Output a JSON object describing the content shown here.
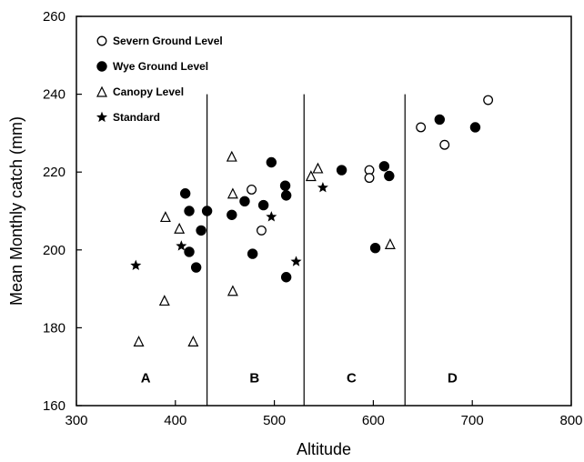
{
  "chart_data": {
    "type": "scatter",
    "xlabel": "Altitude",
    "ylabel": "Mean Monthly catch (mm)",
    "xlim": [
      300,
      800
    ],
    "ylim": [
      160,
      260
    ],
    "x_ticks": [
      300,
      400,
      500,
      600,
      700,
      800
    ],
    "y_ticks": [
      160,
      180,
      200,
      220,
      240,
      260
    ],
    "legend": {
      "placement": "top-left",
      "entries": [
        {
          "name": "Severn Ground Level",
          "marker": "open-circle"
        },
        {
          "name": "Wye Ground Level",
          "marker": "filled-circle"
        },
        {
          "name": "Canopy Level",
          "marker": "open-triangle"
        },
        {
          "name": "Standard",
          "marker": "star"
        }
      ]
    },
    "region_boundaries": [
      432,
      530,
      632
    ],
    "regions": [
      {
        "label": "A",
        "x": 370,
        "y": 166
      },
      {
        "label": "B",
        "x": 480,
        "y": 166
      },
      {
        "label": "C",
        "x": 578,
        "y": 166
      },
      {
        "label": "D",
        "x": 680,
        "y": 166
      }
    ],
    "series": [
      {
        "name": "Severn Ground Level",
        "marker": "open-circle",
        "points": [
          {
            "x": 477,
            "y": 215.5
          },
          {
            "x": 487,
            "y": 205
          },
          {
            "x": 596,
            "y": 220.5
          },
          {
            "x": 596,
            "y": 218.5
          },
          {
            "x": 648,
            "y": 231.5
          },
          {
            "x": 672,
            "y": 227
          },
          {
            "x": 716,
            "y": 238.5
          }
        ]
      },
      {
        "name": "Wye Ground Level",
        "marker": "filled-circle",
        "points": [
          {
            "x": 410,
            "y": 214.5
          },
          {
            "x": 414,
            "y": 210
          },
          {
            "x": 414,
            "y": 199.5
          },
          {
            "x": 421,
            "y": 195.5
          },
          {
            "x": 426,
            "y": 205
          },
          {
            "x": 432,
            "y": 210
          },
          {
            "x": 457,
            "y": 209
          },
          {
            "x": 470,
            "y": 212.5
          },
          {
            "x": 478,
            "y": 199
          },
          {
            "x": 489,
            "y": 211.5
          },
          {
            "x": 497,
            "y": 222.5
          },
          {
            "x": 511,
            "y": 216.5
          },
          {
            "x": 512,
            "y": 214
          },
          {
            "x": 512,
            "y": 193
          },
          {
            "x": 568,
            "y": 220.5
          },
          {
            "x": 602,
            "y": 200.5
          },
          {
            "x": 611,
            "y": 221.5
          },
          {
            "x": 616,
            "y": 219
          },
          {
            "x": 667,
            "y": 233.5
          },
          {
            "x": 703,
            "y": 231.5
          }
        ]
      },
      {
        "name": "Canopy Level",
        "marker": "open-triangle",
        "points": [
          {
            "x": 363,
            "y": 176.5
          },
          {
            "x": 389,
            "y": 187
          },
          {
            "x": 390,
            "y": 208.5
          },
          {
            "x": 404,
            "y": 205.5
          },
          {
            "x": 418,
            "y": 176.5
          },
          {
            "x": 457,
            "y": 224
          },
          {
            "x": 458,
            "y": 214.5
          },
          {
            "x": 458,
            "y": 189.5
          },
          {
            "x": 537,
            "y": 219
          },
          {
            "x": 544,
            "y": 221
          },
          {
            "x": 617,
            "y": 201.5
          }
        ]
      },
      {
        "name": "Standard",
        "marker": "star",
        "points": [
          {
            "x": 360,
            "y": 196
          },
          {
            "x": 406,
            "y": 201
          },
          {
            "x": 497,
            "y": 208.5
          },
          {
            "x": 522,
            "y": 197
          },
          {
            "x": 549,
            "y": 216
          }
        ]
      }
    ]
  }
}
